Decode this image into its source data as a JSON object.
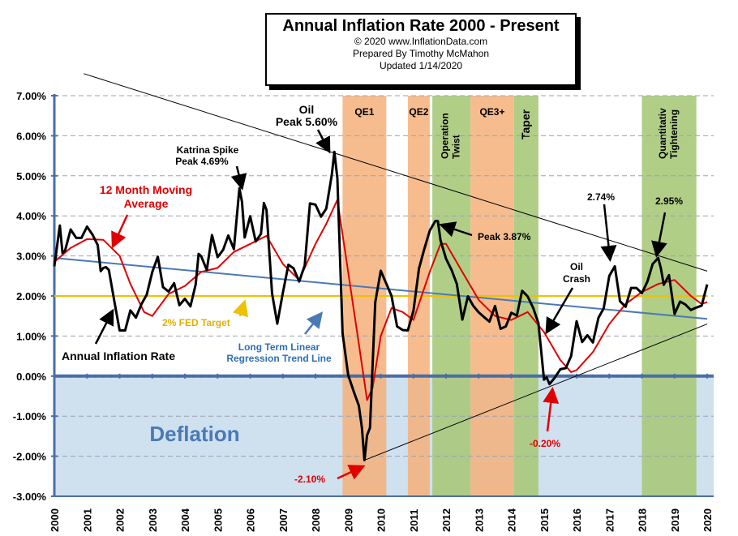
{
  "title": {
    "main": "Annual  Inflation Rate 2000 - Present",
    "copyright": "© 2020  www.InflationData.com",
    "prepared": "Prepared  By Timothy McMahon",
    "updated": "Updated   1/14/2020"
  },
  "colors": {
    "annual": "#000000",
    "moving_avg": "#e00000",
    "trend": "#4a7ab5",
    "fed_target": "#f0c000",
    "qe": "#f5b07a",
    "green": "#a9c97a",
    "deflation": "#cfe0ef",
    "grid": "#9aa0b0",
    "axis": "#4a6fa5"
  },
  "chart_data": {
    "type": "line",
    "title": "Annual  Inflation Rate 2000 - Present",
    "xlabel": "",
    "ylabel": "",
    "xlim": [
      2000,
      2020
    ],
    "ylim": [
      -3.0,
      7.0
    ],
    "grid": true,
    "y_ticks": [
      "7.00%",
      "6.00%",
      "5.00%",
      "4.00%",
      "3.00%",
      "2.00%",
      "1.00%",
      "0.00%",
      "-1.00%",
      "-2.00%",
      "-3.00%"
    ],
    "x_ticks": [
      "2000",
      "2001",
      "2002",
      "2003",
      "2004",
      "2005",
      "2006",
      "2007",
      "2008",
      "2009",
      "2010",
      "2011",
      "2012",
      "2013",
      "2014",
      "2015",
      "2016",
      "2017",
      "2018",
      "2019",
      "2020"
    ],
    "series": [
      {
        "name": "Annual Inflation Rate",
        "x": [
          2000.0,
          2000.17,
          2000.25,
          2000.33,
          2000.5,
          2000.67,
          2000.83,
          2001.0,
          2001.17,
          2001.33,
          2001.42,
          2001.5,
          2001.58,
          2001.67,
          2001.83,
          2002.0,
          2002.17,
          2002.33,
          2002.5,
          2002.67,
          2002.83,
          2003.0,
          2003.17,
          2003.33,
          2003.5,
          2003.67,
          2003.83,
          2004.0,
          2004.17,
          2004.33,
          2004.42,
          2004.5,
          2004.67,
          2004.83,
          2005.0,
          2005.17,
          2005.33,
          2005.5,
          2005.67,
          2005.75,
          2005.83,
          2006.0,
          2006.17,
          2006.33,
          2006.42,
          2006.5,
          2006.67,
          2006.83,
          2007.0,
          2007.17,
          2007.33,
          2007.5,
          2007.67,
          2007.83,
          2008.0,
          2008.17,
          2008.33,
          2008.5,
          2008.58,
          2008.67,
          2008.83,
          2009.0,
          2009.17,
          2009.33,
          2009.42,
          2009.5,
          2009.58,
          2009.67,
          2009.83,
          2010.0,
          2010.17,
          2010.33,
          2010.5,
          2010.67,
          2010.83,
          2011.0,
          2011.17,
          2011.33,
          2011.5,
          2011.67,
          2011.75,
          2011.83,
          2012.0,
          2012.17,
          2012.33,
          2012.5,
          2012.67,
          2012.83,
          2013.0,
          2013.17,
          2013.33,
          2013.5,
          2013.67,
          2013.83,
          2014.0,
          2014.17,
          2014.33,
          2014.5,
          2014.67,
          2014.83,
          2015.0,
          2015.08,
          2015.17,
          2015.33,
          2015.5,
          2015.67,
          2015.83,
          2016.0,
          2016.17,
          2016.33,
          2016.5,
          2016.67,
          2016.83,
          2017.0,
          2017.17,
          2017.33,
          2017.5,
          2017.67,
          2017.83,
          2018.0,
          2018.17,
          2018.33,
          2018.5,
          2018.58,
          2018.67,
          2018.83,
          2019.0,
          2019.17,
          2019.33,
          2019.5,
          2019.67,
          2019.83,
          2020.0
        ],
        "values": [
          2.74,
          3.76,
          3.07,
          3.14,
          3.66,
          3.45,
          3.45,
          3.73,
          3.53,
          3.27,
          2.62,
          2.7,
          2.72,
          2.65,
          1.9,
          1.14,
          1.14,
          1.64,
          1.46,
          1.8,
          2.03,
          2.6,
          2.98,
          2.22,
          2.11,
          2.32,
          1.77,
          1.93,
          1.74,
          2.29,
          3.05,
          2.99,
          2.65,
          3.52,
          2.97,
          3.15,
          3.51,
          3.17,
          4.69,
          4.35,
          3.46,
          3.99,
          3.36,
          3.55,
          4.32,
          4.15,
          2.06,
          1.31,
          2.08,
          2.78,
          2.69,
          2.36,
          2.76,
          4.31,
          4.28,
          3.98,
          4.18,
          5.02,
          5.6,
          4.94,
          1.07,
          0.03,
          -0.38,
          -0.74,
          -1.28,
          -2.1,
          -1.48,
          -1.29,
          1.84,
          2.63,
          2.31,
          2.0,
          1.24,
          1.15,
          1.14,
          1.63,
          2.68,
          3.16,
          3.63,
          3.87,
          3.87,
          3.39,
          2.93,
          2.65,
          2.3,
          1.41,
          1.99,
          1.76,
          1.59,
          1.47,
          1.36,
          1.75,
          1.18,
          1.24,
          1.58,
          1.51,
          2.13,
          1.99,
          1.7,
          1.32,
          -0.09,
          -0.03,
          -0.2,
          -0.04,
          0.17,
          0.2,
          0.5,
          1.37,
          0.85,
          1.02,
          0.84,
          1.46,
          1.69,
          2.5,
          2.74,
          1.87,
          1.73,
          2.2,
          2.2,
          2.07,
          2.36,
          2.8,
          2.95,
          2.7,
          2.28,
          2.52,
          1.55,
          1.86,
          1.79,
          1.65,
          1.71,
          1.76,
          2.29
        ]
      },
      {
        "name": "12 Month Moving Average",
        "x": [
          2000.0,
          2000.5,
          2001.0,
          2001.5,
          2002.0,
          2002.33,
          2002.75,
          2003.0,
          2003.5,
          2004.0,
          2004.5,
          2005.0,
          2005.5,
          2006.0,
          2006.5,
          2007.0,
          2007.5,
          2008.0,
          2008.33,
          2008.67,
          2009.0,
          2009.33,
          2009.58,
          2009.75,
          2010.0,
          2010.33,
          2010.67,
          2011.0,
          2011.5,
          2011.83,
          2012.0,
          2012.5,
          2013.0,
          2013.5,
          2014.0,
          2014.5,
          2015.0,
          2015.5,
          2015.83,
          2016.0,
          2016.5,
          2017.0,
          2017.5,
          2018.0,
          2018.5,
          2019.0,
          2019.5,
          2019.83,
          2020.0
        ],
        "values": [
          2.85,
          3.2,
          3.42,
          3.4,
          3.0,
          2.3,
          1.6,
          1.5,
          2.05,
          2.25,
          2.6,
          2.7,
          3.1,
          3.3,
          3.5,
          2.8,
          2.4,
          3.3,
          3.8,
          4.4,
          2.6,
          0.8,
          -0.6,
          -0.3,
          1.0,
          1.7,
          1.6,
          1.4,
          2.6,
          3.3,
          3.3,
          2.6,
          1.9,
          1.5,
          1.4,
          1.6,
          1.1,
          0.4,
          0.1,
          0.15,
          0.6,
          1.3,
          1.8,
          2.1,
          2.3,
          2.4,
          2.0,
          1.8,
          1.85
        ]
      },
      {
        "name": "Long Term Linear Regression Trend Line",
        "x": [
          2000.0,
          2020.0
        ],
        "values": [
          2.95,
          1.43
        ]
      },
      {
        "name": "2% FED Target",
        "x": [
          2000.0,
          2020.0
        ],
        "values": [
          2.0,
          2.0
        ]
      }
    ],
    "extra_lines": [
      {
        "x": [
          2000.9,
          2020.0
        ],
        "values": [
          7.55,
          2.62
        ]
      },
      {
        "x": [
          2009.5,
          2020.0
        ],
        "values": [
          -2.1,
          1.3
        ]
      }
    ],
    "bands": [
      {
        "label": "QE1",
        "from": 2008.83,
        "to": 2010.17,
        "color": "qe",
        "vertical": false
      },
      {
        "label": "QE2",
        "from": 2010.83,
        "to": 2011.5,
        "color": "qe",
        "vertical": false
      },
      {
        "label": "Operation Twist",
        "from": 2011.58,
        "to": 2012.75,
        "color": "green",
        "vertical": true
      },
      {
        "label": "QE3+",
        "from": 2012.75,
        "to": 2014.08,
        "color": "qe",
        "vertical": false
      },
      {
        "label": "Taper",
        "from": 2014.08,
        "to": 2014.83,
        "color": "green",
        "vertical": true
      },
      {
        "label": "Quantitativ Tightening",
        "from": 2018.0,
        "to": 2019.67,
        "color": "green",
        "vertical": true
      }
    ],
    "deflation_label": "Deflation",
    "annotations": [
      {
        "id": "oil_peak_1",
        "text": "Oil"
      },
      {
        "id": "oil_peak_2",
        "text": "Peak 5.60%"
      },
      {
        "id": "katrina_1",
        "text": "Katrina Spike"
      },
      {
        "id": "katrina_2",
        "text": "Peak 4.69%"
      },
      {
        "id": "ma_1",
        "text": "12 Month Moving"
      },
      {
        "id": "ma_2",
        "text": "Average"
      },
      {
        "id": "peak387",
        "text": "Peak 3.87%"
      },
      {
        "id": "v274",
        "text": "2.74%"
      },
      {
        "id": "v295",
        "text": "2.95%"
      },
      {
        "id": "oil_crash_1",
        "text": "Oil"
      },
      {
        "id": "oil_crash_2",
        "text": "Crash"
      },
      {
        "id": "fed",
        "text": "2% FED Target"
      },
      {
        "id": "annual",
        "text": "Annual Inflation Rate"
      },
      {
        "id": "trend_1",
        "text": "Long Term Linear"
      },
      {
        "id": "trend_2",
        "text": "Regression Trend Line"
      },
      {
        "id": "m210",
        "text": "-2.10%"
      },
      {
        "id": "m020",
        "text": "-0.20%"
      }
    ]
  }
}
